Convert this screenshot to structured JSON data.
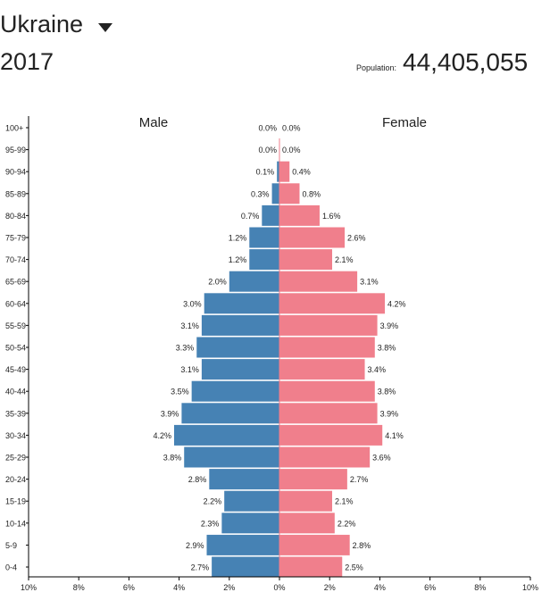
{
  "header": {
    "country": "Ukraine",
    "year": "2017",
    "population_label": "Population:",
    "population_value": "44,405,055"
  },
  "colors": {
    "male": "#4682b4",
    "female": "#f07f8c",
    "axis": "#000000",
    "text": "#222222"
  },
  "chart_data": {
    "type": "bar",
    "orientation": "horizontal",
    "subtype": "population-pyramid",
    "categories": [
      "100+",
      "95-99",
      "90-94",
      "85-89",
      "80-84",
      "75-79",
      "70-74",
      "65-69",
      "60-64",
      "55-59",
      "50-54",
      "45-49",
      "40-44",
      "35-39",
      "30-34",
      "25-29",
      "20-24",
      "15-19",
      "10-14",
      "5-9",
      "0-4"
    ],
    "series": [
      {
        "name": "Male",
        "side": "left",
        "values": [
          0.0,
          0.0,
          0.1,
          0.3,
          0.7,
          1.2,
          1.2,
          2.0,
          3.0,
          3.1,
          3.3,
          3.1,
          3.5,
          3.9,
          4.2,
          3.8,
          2.8,
          2.2,
          2.3,
          2.9,
          2.7
        ]
      },
      {
        "name": "Female",
        "side": "right",
        "values": [
          0.0,
          0.0,
          0.4,
          0.8,
          1.6,
          2.6,
          2.1,
          3.1,
          4.2,
          3.9,
          3.8,
          3.4,
          3.8,
          3.9,
          4.1,
          3.6,
          2.7,
          2.1,
          2.2,
          2.8,
          2.5
        ]
      }
    ],
    "value_suffix": "%",
    "xlim": [
      -10,
      10
    ],
    "xticks": [
      "10%",
      "8%",
      "6%",
      "4%",
      "2%",
      "0%",
      "2%",
      "4%",
      "6%",
      "8%",
      "10%"
    ],
    "grid": false,
    "legend": "series names shown above each side"
  }
}
